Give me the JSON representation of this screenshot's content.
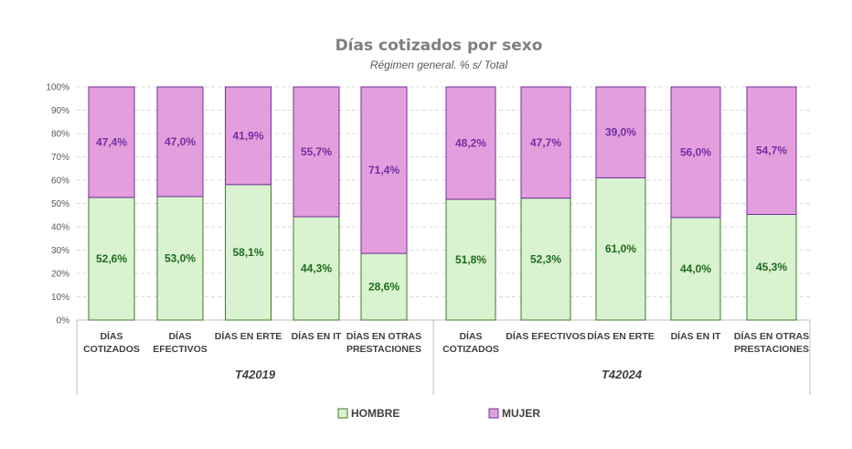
{
  "chart_data": {
    "type": "bar",
    "stacked": true,
    "title": "Días cotizados por sexo",
    "subtitle": "Régimen general. % s/ Total",
    "ylim": [
      0,
      100
    ],
    "yticks": [
      "0%",
      "10%",
      "20%",
      "30%",
      "40%",
      "50%",
      "60%",
      "70%",
      "80%",
      "90%",
      "100%"
    ],
    "grid": true,
    "legend_position": "bottom",
    "colors": {
      "hombre_fill": "#d9f2d0",
      "hombre_stroke": "#3a7d22",
      "mujer_fill": "#e49edd",
      "mujer_stroke": "#7030a0"
    },
    "legend": [
      {
        "key": "hombre",
        "name": "HOMBRE"
      },
      {
        "key": "mujer",
        "name": "MUJER"
      }
    ],
    "groups": [
      {
        "name": "T42019",
        "categories": [
          {
            "lines": [
              "DÍAS",
              "COTIZADOS"
            ],
            "hombre": 52.6,
            "mujer": 47.4,
            "hombre_label": "52,6%",
            "mujer_label": "47,4%"
          },
          {
            "lines": [
              "DÍAS",
              "EFECTIVOS"
            ],
            "hombre": 53.0,
            "mujer": 47.0,
            "hombre_label": "53,0%",
            "mujer_label": "47,0%"
          },
          {
            "lines": [
              "DÍAS EN ERTE"
            ],
            "hombre": 58.1,
            "mujer": 41.9,
            "hombre_label": "58,1%",
            "mujer_label": "41,9%"
          },
          {
            "lines": [
              "DÍAS EN IT"
            ],
            "hombre": 44.3,
            "mujer": 55.7,
            "hombre_label": "44,3%",
            "mujer_label": "55,7%"
          },
          {
            "lines": [
              "DÍAS EN OTRAS",
              "PRESTACIONES"
            ],
            "hombre": 28.6,
            "mujer": 71.4,
            "hombre_label": "28,6%",
            "mujer_label": "71,4%"
          }
        ]
      },
      {
        "name": "T42024",
        "categories": [
          {
            "lines": [
              "DÍAS",
              "COTIZADOS"
            ],
            "hombre": 51.8,
            "mujer": 48.2,
            "hombre_label": "51,8%",
            "mujer_label": "48,2%"
          },
          {
            "lines": [
              "DÍAS EFECTIVOS"
            ],
            "hombre": 52.3,
            "mujer": 47.7,
            "hombre_label": "52,3%",
            "mujer_label": "47,7%"
          },
          {
            "lines": [
              "DÍAS EN ERTE"
            ],
            "hombre": 61.0,
            "mujer": 39.0,
            "hombre_label": "61,0%",
            "mujer_label": "39,0%"
          },
          {
            "lines": [
              "DÍAS EN IT"
            ],
            "hombre": 44.0,
            "mujer": 56.0,
            "hombre_label": "44,0%",
            "mujer_label": "56,0%"
          },
          {
            "lines": [
              "DÍAS EN OTRAS",
              "PRESTACIONES"
            ],
            "hombre": 45.3,
            "mujer": 54.7,
            "hombre_label": "45,3%",
            "mujer_label": "54,7%"
          }
        ]
      }
    ]
  }
}
